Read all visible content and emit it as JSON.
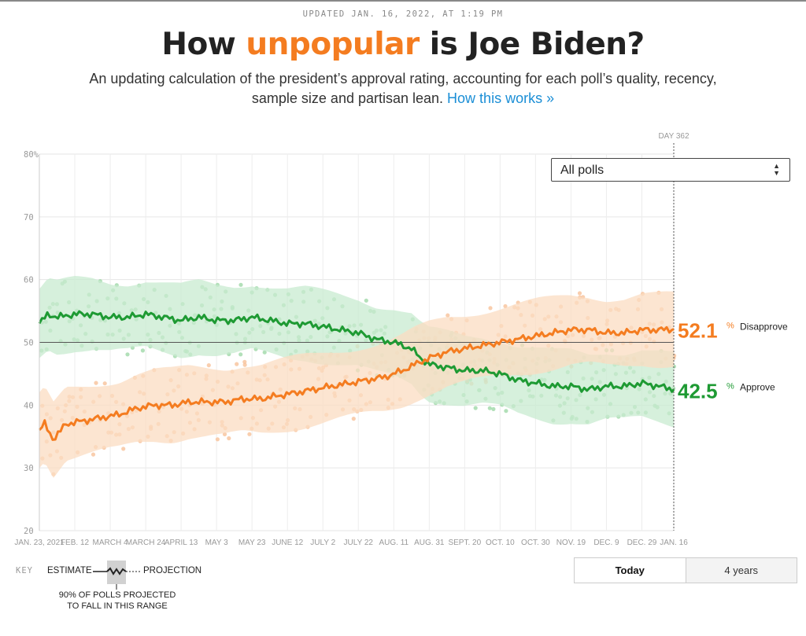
{
  "header": {
    "updated": "UPDATED JAN. 16, 2022, AT 1:19 PM",
    "title_pre": "How ",
    "title_highlight": "unpopular",
    "title_post": " is Joe Biden?",
    "subtitle": "An updating calculation of the president’s approval rating, accounting for each poll’s quality, recency, sample size and partisan lean.",
    "subtitle_link": "How this works »"
  },
  "filter": {
    "selected": "All polls"
  },
  "colors": {
    "approve": "#1e9a33",
    "disapprove": "#f47c20",
    "approve_band": "#c8ebd0",
    "disapprove_band": "#fbdcc2"
  },
  "chart_data": {
    "type": "line",
    "ylim": [
      20,
      80
    ],
    "yticks": [
      "80%",
      "70",
      "60",
      "50",
      "40",
      "30",
      "20"
    ],
    "reference_line": 50,
    "day_marker": "DAY 362",
    "grid": true,
    "x_tick_labels": [
      "JAN. 23, 2021",
      "FEB. 12",
      "MARCH 4",
      "MARCH 24",
      "APRIL 13",
      "MAY 3",
      "MAY 23",
      "JUNE 12",
      "JULY 2",
      "JULY 22",
      "AUG. 11",
      "AUG. 31",
      "SEPT. 20",
      "OCT. 10",
      "OCT. 30",
      "NOV. 19",
      "DEC. 9",
      "DEC. 29",
      "JAN. 16"
    ],
    "x_tick_days": [
      0,
      20,
      40,
      60,
      80,
      100,
      120,
      140,
      160,
      180,
      200,
      220,
      240,
      260,
      280,
      300,
      320,
      340,
      358
    ],
    "series": [
      {
        "name": "Approve",
        "current": "42.5",
        "x": [
          0,
          5,
          10,
          20,
          30,
          40,
          50,
          60,
          70,
          80,
          90,
          100,
          110,
          120,
          130,
          140,
          150,
          160,
          170,
          180,
          190,
          200,
          210,
          215,
          220,
          230,
          240,
          250,
          260,
          270,
          280,
          290,
          300,
          310,
          320,
          330,
          340,
          350,
          358
        ],
        "y": [
          53,
          54.5,
          54,
          54.5,
          54.5,
          54,
          54,
          54.5,
          54,
          53.5,
          54,
          53.5,
          53.5,
          54,
          53.5,
          53,
          53,
          52.5,
          52,
          51.5,
          50.5,
          50,
          49,
          47.5,
          46.5,
          46,
          45.5,
          45.5,
          45,
          44,
          43.5,
          43,
          43,
          42.5,
          43,
          43,
          43.5,
          43,
          42.5
        ]
      },
      {
        "name": "Disapprove",
        "current": "52.1",
        "x": [
          0,
          3,
          8,
          15,
          25,
          35,
          45,
          55,
          65,
          75,
          85,
          95,
          105,
          115,
          125,
          135,
          145,
          155,
          165,
          175,
          185,
          195,
          205,
          212,
          220,
          230,
          240,
          250,
          260,
          270,
          280,
          290,
          300,
          310,
          320,
          330,
          340,
          350,
          358
        ],
        "y": [
          36,
          37,
          34.5,
          37,
          37.5,
          38,
          38.5,
          39.5,
          40,
          40,
          40.5,
          40.5,
          40.5,
          41,
          41,
          41.5,
          42,
          42.5,
          43,
          43.5,
          44,
          44.5,
          45.5,
          46.5,
          47.5,
          48.5,
          49,
          49.5,
          50,
          50.5,
          51,
          51.5,
          52,
          52,
          51.5,
          51.5,
          52,
          52,
          52.1
        ]
      }
    ]
  },
  "key": {
    "label": "KEY",
    "estimate": "ESTIMATE",
    "projection": "PROJECTION",
    "range_line1": "90% OF POLLS PROJECTED",
    "range_line2": "TO FALL IN THIS RANGE"
  },
  "toggle": {
    "today": "Today",
    "years": "4 years"
  }
}
